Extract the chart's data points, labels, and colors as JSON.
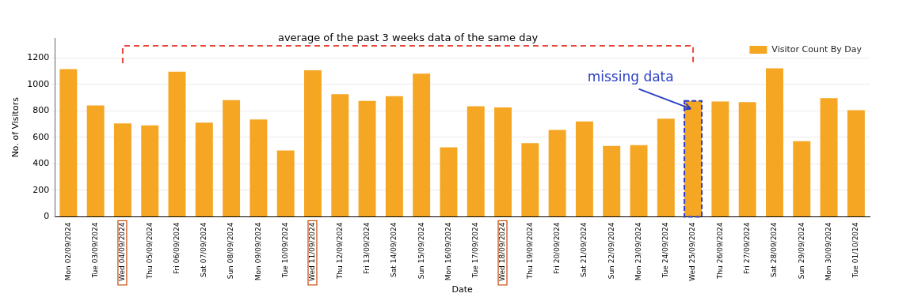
{
  "chart_data": {
    "type": "bar",
    "xlabel": "Date",
    "ylabel": "No. of Visitors",
    "categories": [
      "Mon 02/09/2024",
      "Tue 03/09/2024",
      "Wed 04/09/2024",
      "Thu 05/09/2024",
      "Fri 06/09/2024",
      "Sat 07/09/2024",
      "Sun 08/09/2024",
      "Mon 09/09/2024",
      "Tue 10/09/2024",
      "Wed 11/09/2024",
      "Thu 12/09/2024",
      "Fri 13/09/2024",
      "Sat 14/09/2024",
      "Sun 15/09/2024",
      "Mon 16/09/2024",
      "Tue 17/09/2024",
      "Wed 18/09/2024",
      "Thu 19/09/2024",
      "Fri 20/09/2024",
      "Sat 21/09/2024",
      "Sun 22/09/2024",
      "Mon 23/09/2024",
      "Tue 24/09/2024",
      "Wed 25/09/2024",
      "Thu 26/09/2024",
      "Fri 27/09/2024",
      "Sat 28/09/2024",
      "Sun 29/09/2024",
      "Mon 30/09/2024",
      "Tue 01/10/2024"
    ],
    "series": [
      {
        "name": "Visitor Count By Day",
        "color": "#f5a623",
        "values": [
          1115,
          840,
          705,
          690,
          1095,
          710,
          880,
          735,
          500,
          1105,
          925,
          875,
          910,
          1080,
          525,
          835,
          825,
          555,
          655,
          720,
          535,
          540,
          740,
          875,
          870,
          865,
          1120,
          570,
          895,
          805
        ]
      }
    ],
    "ylim": [
      0,
      1350
    ],
    "yticks": [
      0,
      200,
      400,
      600,
      800,
      1000,
      1200
    ],
    "grid": "y",
    "legend": "top right",
    "annotations": [
      "average of the past 3 weeks data of the same day",
      {
        "text": "missing data",
        "x": "Wed 25/09/2024",
        "y": 875
      }
    ]
  }
}
